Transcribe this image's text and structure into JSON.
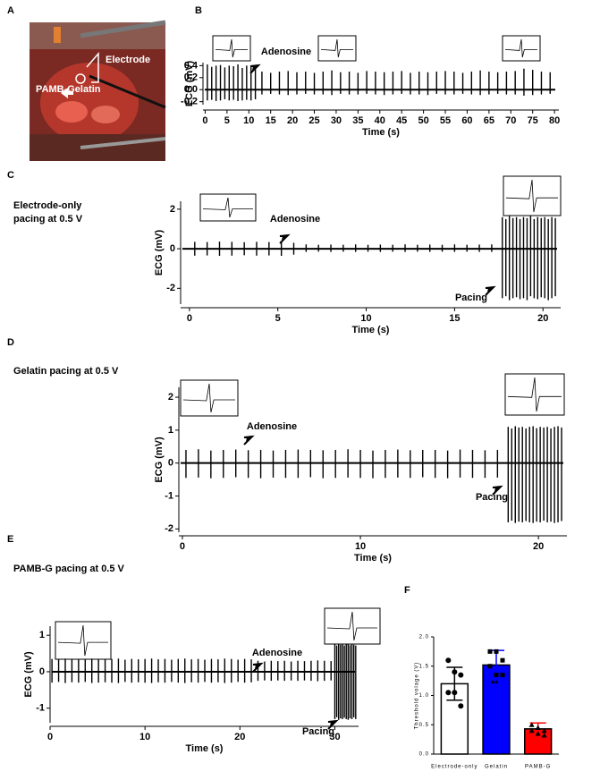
{
  "panel_a": {
    "label": "A",
    "annotations": [
      "Electrode",
      "PAMB-Gelatin"
    ]
  },
  "chart_data": [
    {
      "type": "spike",
      "panel": "B",
      "xlabel": "Time (s)",
      "ylabel": "ECG (mV)",
      "annotations": [
        "Adenosine"
      ],
      "color": "#000000",
      "xlim": [
        -0.5,
        81
      ],
      "xticks": [
        0,
        5,
        10,
        15,
        20,
        25,
        30,
        35,
        40,
        45,
        50,
        55,
        60,
        65,
        70,
        75,
        80
      ],
      "ylim": [
        -0.25,
        0.45
      ],
      "yticks": [
        -0.2,
        {
          "value": 0,
          "label": "0.0"
        },
        0.2,
        0.4
      ],
      "x": [
        0.5,
        1.5,
        2.5,
        3.5,
        4.5,
        5.5,
        6.5,
        7.5,
        8.5,
        9.5,
        10.5,
        11.5,
        13,
        15,
        17,
        19,
        21,
        23,
        25,
        27,
        29,
        31,
        33,
        35,
        37,
        39,
        41,
        43,
        45,
        47,
        49,
        51,
        53,
        55,
        57,
        59,
        61,
        63,
        65,
        67,
        69,
        71,
        73,
        75,
        77,
        79
      ],
      "values": [
        0.42,
        0.38,
        0.4,
        0.41,
        0.37,
        0.4,
        0.39,
        0.42,
        0.36,
        0.4,
        0.38,
        0.41,
        0.3,
        0.28,
        0.3,
        0.31,
        0.29,
        0.3,
        0.28,
        0.3,
        0.32,
        0.29,
        0.3,
        0.28,
        0.31,
        0.3,
        0.29,
        0.3,
        0.31,
        0.28,
        0.3,
        0.29,
        0.3,
        0.31,
        0.3,
        0.28,
        0.3,
        0.32,
        0.3,
        0.29,
        0.3,
        0.31,
        0.35,
        0.33,
        0.3,
        0.29
      ],
      "troughs": [
        -0.18,
        -0.17,
        -0.19,
        -0.18,
        -0.16,
        -0.18,
        -0.17,
        -0.19,
        -0.18,
        -0.17,
        -0.18,
        -0.16,
        -0.08,
        -0.07,
        -0.08,
        -0.09,
        -0.08,
        -0.07,
        -0.08,
        -0.08,
        -0.09,
        -0.07,
        -0.08,
        -0.08,
        -0.07,
        -0.08,
        -0.09,
        -0.08,
        -0.07,
        -0.08,
        -0.08,
        -0.09,
        -0.07,
        -0.08,
        -0.08,
        -0.07,
        -0.08,
        -0.09,
        -0.08,
        -0.07,
        -0.08,
        -0.08,
        -0.1,
        -0.09,
        -0.08,
        -0.07
      ]
    },
    {
      "type": "spike",
      "panel": "C",
      "caption": [
        "Electrode-only",
        "pacing at 0.5 V"
      ],
      "xlabel": "Time (s)",
      "ylabel": "ECG (mV)",
      "annotations": [
        "Adenosine",
        "Pacing"
      ],
      "color": "#000000",
      "xlim": [
        -0.5,
        21
      ],
      "xticks": [
        0,
        5,
        10,
        15,
        20
      ],
      "ylim": [
        -2.8,
        2.4
      ],
      "yticks": [
        -2,
        0,
        2
      ],
      "x": [
        0.3,
        1.0,
        1.7,
        2.4,
        3.1,
        3.8,
        4.5,
        5.2,
        5.9,
        6.6,
        7.3,
        8.0,
        8.7,
        9.4,
        10.1,
        10.8,
        11.5,
        12.2,
        12.9,
        13.6,
        14.3,
        15.0,
        15.7,
        16.4,
        17.1,
        17.7,
        17.9,
        18.1,
        18.3,
        18.5,
        18.7,
        18.9,
        19.1,
        19.3,
        19.5,
        19.7,
        19.9,
        20.1,
        20.3,
        20.5,
        20.7
      ],
      "values": [
        0.35,
        0.34,
        0.36,
        0.35,
        0.33,
        0.35,
        0.34,
        0.36,
        0.3,
        0.22,
        0.2,
        0.21,
        0.2,
        0.22,
        0.2,
        0.21,
        0.2,
        0.22,
        0.2,
        0.21,
        0.2,
        0.22,
        0.2,
        0.21,
        0.22,
        1.6,
        1.5,
        1.65,
        1.55,
        1.6,
        1.5,
        1.6,
        1.55,
        1.65,
        1.5,
        1.6,
        1.55,
        1.6,
        1.5,
        1.6,
        1.55
      ],
      "troughs": [
        -0.35,
        -0.34,
        -0.36,
        -0.35,
        -0.33,
        -0.35,
        -0.34,
        -0.36,
        -0.3,
        -0.16,
        -0.15,
        -0.16,
        -0.15,
        -0.16,
        -0.15,
        -0.16,
        -0.15,
        -0.16,
        -0.15,
        -0.16,
        -0.15,
        -0.16,
        -0.15,
        -0.16,
        -0.16,
        -2.5,
        -2.4,
        -2.6,
        -2.5,
        -2.45,
        -2.55,
        -2.5,
        -2.6,
        -2.4,
        -2.5,
        -2.55,
        -2.45,
        -2.5,
        -2.6,
        -2.5,
        -2.4
      ]
    },
    {
      "type": "spike",
      "panel": "D",
      "caption": [
        "Gelatin pacing at 0.5 V"
      ],
      "xlabel": "Time (s)",
      "ylabel": "ECG (mV)",
      "annotations": [
        "Adenosine",
        "Pacing"
      ],
      "color": "#000000",
      "xlim": [
        -0.2,
        21.6
      ],
      "xticks": [
        0,
        10,
        20
      ],
      "ylim": [
        -2.1,
        2.3
      ],
      "yticks": [
        -2,
        -1,
        0,
        1,
        2
      ],
      "x": [
        0.2,
        0.9,
        1.6,
        2.3,
        3.0,
        3.7,
        4.4,
        5.1,
        5.8,
        6.5,
        7.2,
        7.9,
        8.6,
        9.3,
        10.0,
        10.7,
        11.4,
        12.1,
        12.8,
        13.5,
        14.2,
        14.9,
        15.6,
        16.3,
        17.0,
        17.7,
        18.3,
        18.5,
        18.7,
        18.9,
        19.1,
        19.3,
        19.5,
        19.7,
        19.9,
        20.1,
        20.3,
        20.5,
        20.7,
        20.9,
        21.1,
        21.3
      ],
      "values": [
        0.4,
        0.42,
        0.38,
        0.4,
        0.41,
        0.39,
        0.4,
        0.38,
        0.4,
        0.41,
        0.4,
        0.39,
        0.4,
        0.42,
        0.4,
        0.38,
        0.4,
        0.41,
        0.39,
        0.4,
        0.4,
        0.38,
        0.41,
        0.4,
        0.39,
        0.4,
        1.1,
        1.05,
        1.12,
        1.08,
        1.1,
        1.05,
        1.1,
        1.12,
        1.06,
        1.1,
        1.08,
        1.1,
        1.05,
        1.1,
        1.12,
        1.08
      ],
      "troughs": [
        -0.45,
        -0.44,
        -0.46,
        -0.45,
        -0.43,
        -0.45,
        -0.46,
        -0.44,
        -0.45,
        -0.45,
        -0.43,
        -0.46,
        -0.45,
        -0.44,
        -0.45,
        -0.46,
        -0.45,
        -0.44,
        -0.45,
        -0.43,
        -0.45,
        -0.46,
        -0.44,
        -0.45,
        -0.45,
        -0.44,
        -1.8,
        -1.75,
        -1.82,
        -1.78,
        -1.8,
        -1.76,
        -1.8,
        -1.82,
        -1.78,
        -1.8,
        -1.75,
        -1.8,
        -1.78,
        -1.82,
        -1.8,
        -1.76
      ]
    },
    {
      "type": "spike",
      "panel": "E",
      "caption": [
        "PAMB-G pacing at 0.5 V"
      ],
      "xlabel": "Time (s)",
      "ylabel": "ECG (mV)",
      "annotations": [
        "Adenosine",
        "Pacing"
      ],
      "color": "#000000",
      "xlim": [
        0,
        32.5
      ],
      "xticks": [
        0,
        10,
        20,
        30
      ],
      "ylim": [
        -1.4,
        1.25
      ],
      "yticks": [
        -1,
        0,
        1
      ],
      "x": [
        0.2,
        0.9,
        1.6,
        2.3,
        3.0,
        3.7,
        4.4,
        5.1,
        5.8,
        6.5,
        7.2,
        7.9,
        8.6,
        9.3,
        10.0,
        10.7,
        11.4,
        12.1,
        12.8,
        13.5,
        14.2,
        14.9,
        15.6,
        16.3,
        17.0,
        17.7,
        18.4,
        19.1,
        19.8,
        20.5,
        21.2,
        21.9,
        22.6,
        23.3,
        24.0,
        24.7,
        25.4,
        26.1,
        26.8,
        27.5,
        28.2,
        28.9,
        29.6,
        30.0,
        30.2,
        30.4,
        30.6,
        30.8,
        31.0,
        31.2,
        31.4,
        31.6,
        31.8,
        32.0,
        32.2
      ],
      "values": [
        0.35,
        0.33,
        0.36,
        0.34,
        0.35,
        0.33,
        0.36,
        0.35,
        0.34,
        0.35,
        0.36,
        0.33,
        0.35,
        0.34,
        0.35,
        0.36,
        0.34,
        0.35,
        0.33,
        0.35,
        0.36,
        0.34,
        0.35,
        0.33,
        0.35,
        0.34,
        0.36,
        0.35,
        0.33,
        0.35,
        0.34,
        0.3,
        0.28,
        0.3,
        0.29,
        0.3,
        0.28,
        0.3,
        0.29,
        0.3,
        0.31,
        0.3,
        0.29,
        0.75,
        0.72,
        0.76,
        0.74,
        0.75,
        0.72,
        0.75,
        0.76,
        0.73,
        0.75,
        0.74,
        0.72
      ],
      "troughs": [
        -0.3,
        -0.28,
        -0.31,
        -0.29,
        -0.3,
        -0.28,
        -0.31,
        -0.3,
        -0.29,
        -0.3,
        -0.31,
        -0.28,
        -0.3,
        -0.29,
        -0.3,
        -0.31,
        -0.29,
        -0.3,
        -0.28,
        -0.3,
        -0.31,
        -0.29,
        -0.3,
        -0.28,
        -0.3,
        -0.29,
        -0.31,
        -0.3,
        -0.28,
        -0.3,
        -0.29,
        -0.25,
        -0.24,
        -0.25,
        -0.24,
        -0.25,
        -0.24,
        -0.25,
        -0.24,
        -0.25,
        -0.26,
        -0.25,
        -0.24,
        -1.3,
        -1.25,
        -1.32,
        -1.28,
        -1.3,
        -1.26,
        -1.3,
        -1.32,
        -1.28,
        -1.3,
        -1.25,
        -1.3
      ]
    },
    {
      "type": "bar",
      "panel": "F",
      "ylabel": "Threshold volage (V)",
      "annotations": [
        "**"
      ],
      "categories": [
        "Electrode-only",
        "Gelatin",
        "PAMB-G"
      ],
      "values": [
        1.2,
        1.52,
        0.43
      ],
      "errors": [
        0.28,
        0.25,
        0.1
      ],
      "colors": [
        "#ffffff",
        "#0000ff",
        "#ff0000"
      ],
      "points": [
        [
          1.6,
          1.4,
          1.35,
          1.05,
          1.05,
          0.82
        ],
        [
          1.75,
          1.75,
          1.6,
          1.5,
          1.35,
          1.35
        ],
        [
          0.5,
          0.45,
          0.4,
          0.4,
          0.35,
          0.32
        ]
      ],
      "ylim": [
        0,
        2
      ],
      "yticks": [
        {
          "value": 0,
          "label": "0.0"
        },
        0.5,
        {
          "value": 1,
          "label": "1.0"
        },
        1.5,
        {
          "value": 2,
          "label": "2.0"
        }
      ]
    }
  ]
}
